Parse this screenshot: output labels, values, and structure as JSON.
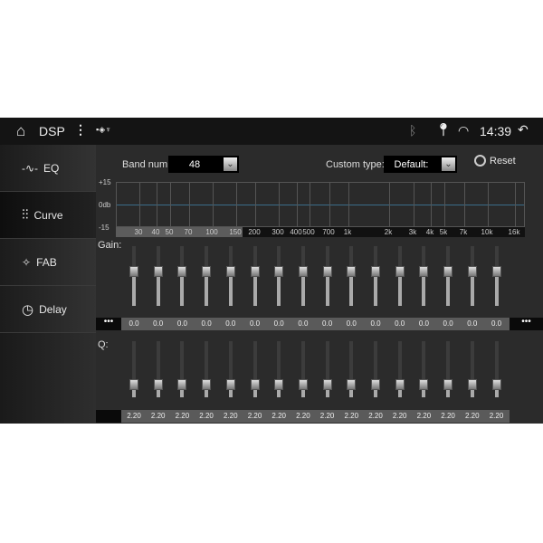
{
  "status_bar": {
    "title": "DSP",
    "time": "14:39",
    "icons": [
      "home-icon",
      "more-vert-icon",
      "image-icon",
      "shield-icon",
      "usb-icon",
      "bluetooth-icon",
      "location-icon",
      "wifi-icon",
      "back-icon"
    ]
  },
  "sidebar": {
    "items": [
      {
        "label": "EQ",
        "icon": "waveform-icon"
      },
      {
        "label": "Curve",
        "icon": "sliders-icon",
        "selected": true
      },
      {
        "label": "FAB",
        "icon": "fader-balance-icon"
      },
      {
        "label": "Delay",
        "icon": "clock-icon"
      }
    ]
  },
  "controls": {
    "band_label": "Band num:",
    "band_value": "48",
    "custom_label": "Custom type:",
    "custom_value": "Default:",
    "reset_label": "Reset"
  },
  "curve": {
    "y_labels": [
      "+15",
      "0db",
      "-15"
    ],
    "x_labels": [
      "30",
      "40",
      "50",
      "70",
      "100",
      "150",
      "200",
      "300",
      "400",
      "500",
      "700",
      "1k",
      "2k",
      "3k",
      "4k",
      "5k",
      "7k",
      "10k",
      "16k"
    ]
  },
  "gain": {
    "label": "Gain:",
    "values": [
      "0.0",
      "0.0",
      "0.0",
      "0.0",
      "0.0",
      "0.0",
      "0.0",
      "0.0",
      "0.0",
      "0.0",
      "0.0",
      "0.0",
      "0.0",
      "0.0",
      "0.0",
      "0.0"
    ],
    "more": "•••"
  },
  "q": {
    "label": "Q:",
    "values": [
      "2.20",
      "2.20",
      "2.20",
      "2.20",
      "2.20",
      "2.20",
      "2.20",
      "2.20",
      "2.20",
      "2.20",
      "2.20",
      "2.20",
      "2.20",
      "2.20",
      "2.20",
      "2.20"
    ]
  }
}
